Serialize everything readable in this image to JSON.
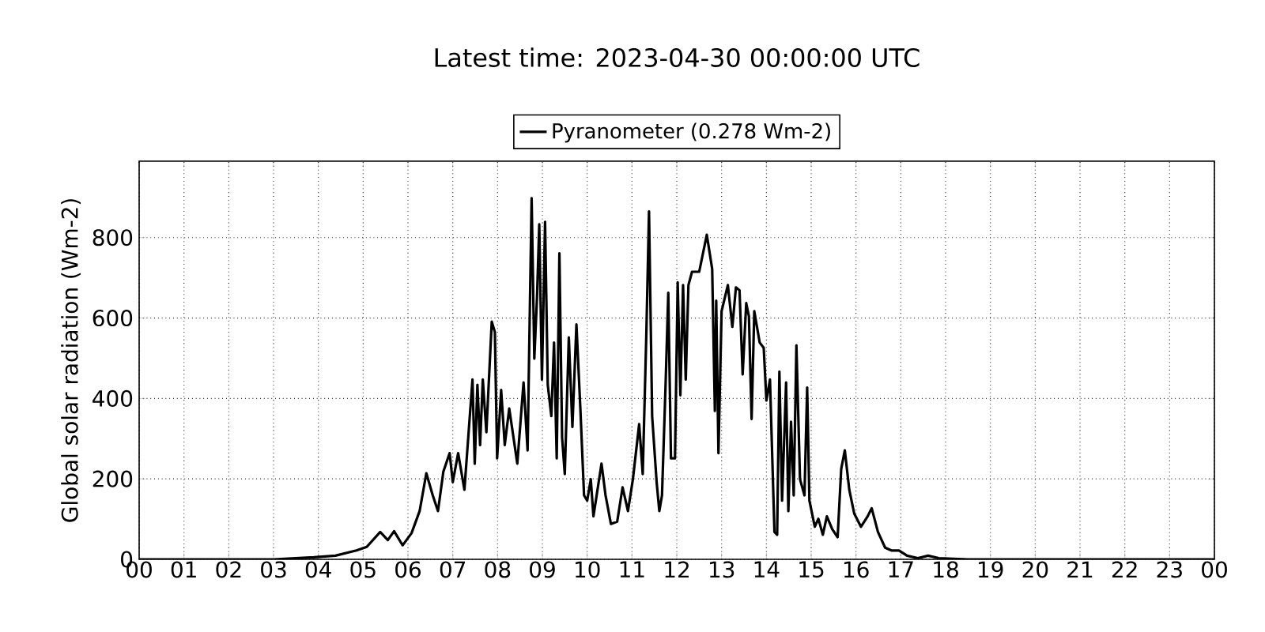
{
  "chart_data": {
    "type": "line",
    "title": "Latest time: 2023-04-30 00:00:00 UTC",
    "ylabel": "Global solar radiation (Wm-2)",
    "xlim": [
      0,
      24
    ],
    "xticks": [
      {
        "value": 0,
        "label": "00"
      },
      {
        "value": 1,
        "label": "01"
      },
      {
        "value": 2,
        "label": "02"
      },
      {
        "value": 3,
        "label": "03"
      },
      {
        "value": 4,
        "label": "04"
      },
      {
        "value": 5,
        "label": "05"
      },
      {
        "value": 6,
        "label": "06"
      },
      {
        "value": 7,
        "label": "07"
      },
      {
        "value": 8,
        "label": "08"
      },
      {
        "value": 9,
        "label": "09"
      },
      {
        "value": 10,
        "label": "10"
      },
      {
        "value": 11,
        "label": "11"
      },
      {
        "value": 12,
        "label": "12"
      },
      {
        "value": 13,
        "label": "13"
      },
      {
        "value": 14,
        "label": "14"
      },
      {
        "value": 15,
        "label": "15"
      },
      {
        "value": 16,
        "label": "16"
      },
      {
        "value": 17,
        "label": "17"
      },
      {
        "value": 18,
        "label": "18"
      },
      {
        "value": 19,
        "label": "19"
      },
      {
        "value": 20,
        "label": "20"
      },
      {
        "value": 21,
        "label": "21"
      },
      {
        "value": 22,
        "label": "22"
      },
      {
        "value": 23,
        "label": "23"
      },
      {
        "value": 24,
        "label": "00"
      }
    ],
    "ylim": [
      0,
      990
    ],
    "yticks": [
      0,
      200,
      400,
      600,
      800
    ],
    "grid": true,
    "legend": "top",
    "marker": "none",
    "line_style": "solid",
    "series": [
      {
        "name": "Pyranometer (0.278 Wm-2)",
        "color": "#000000",
        "x": [
          0,
          3.0,
          3.9,
          4.38,
          4.85,
          5.08,
          5.38,
          5.55,
          5.69,
          5.88,
          6.08,
          6.26,
          6.41,
          6.55,
          6.67,
          6.79,
          6.93,
          7.0,
          7.12,
          7.26,
          7.44,
          7.49,
          7.55,
          7.61,
          7.67,
          7.75,
          7.87,
          7.94,
          7.99,
          8.08,
          8.16,
          8.26,
          8.44,
          8.58,
          8.67,
          8.76,
          8.82,
          8.88,
          8.93,
          8.99,
          9.06,
          9.12,
          9.2,
          9.26,
          9.32,
          9.38,
          9.44,
          9.5,
          9.59,
          9.67,
          9.76,
          9.85,
          9.93,
          10.0,
          10.08,
          10.14,
          10.32,
          10.41,
          10.53,
          10.67,
          10.79,
          10.91,
          11.02,
          11.16,
          11.24,
          11.32,
          11.38,
          11.45,
          11.55,
          11.61,
          11.67,
          11.75,
          11.81,
          11.87,
          11.96,
          12.02,
          12.08,
          12.14,
          12.2,
          12.26,
          12.34,
          12.5,
          12.67,
          12.79,
          12.85,
          12.88,
          12.93,
          13.0,
          13.14,
          13.24,
          13.32,
          13.4,
          13.47,
          13.55,
          13.61,
          13.67,
          13.73,
          13.85,
          13.94,
          14.0,
          14.08,
          14.18,
          14.24,
          14.29,
          14.35,
          14.44,
          14.49,
          14.55,
          14.61,
          14.67,
          14.75,
          14.85,
          14.91,
          14.96,
          15.08,
          15.16,
          15.26,
          15.35,
          15.47,
          15.59,
          15.67,
          15.75,
          15.85,
          15.96,
          16.11,
          16.26,
          16.35,
          16.49,
          16.65,
          16.79,
          16.96,
          17.14,
          17.38,
          17.61,
          17.85,
          18.5,
          24
        ],
        "values": [
          0,
          0,
          5,
          9,
          22,
          31,
          68,
          48,
          70,
          35,
          65,
          120,
          214,
          160,
          120,
          218,
          264,
          192,
          264,
          173,
          447,
          238,
          434,
          284,
          447,
          316,
          591,
          565,
          251,
          421,
          284,
          375,
          238,
          440,
          271,
          898,
          499,
          650,
          833,
          447,
          839,
          434,
          356,
          539,
          251,
          761,
          303,
          212,
          552,
          329,
          584,
          369,
          159,
          146,
          199,
          107,
          238,
          159,
          88,
          94,
          179,
          120,
          199,
          336,
          212,
          558,
          865,
          356,
          192,
          120,
          159,
          434,
          663,
          251,
          251,
          689,
          408,
          682,
          447,
          682,
          715,
          715,
          807,
          722,
          369,
          643,
          264,
          617,
          682,
          578,
          676,
          669,
          460,
          637,
          604,
          349,
          617,
          539,
          526,
          395,
          447,
          68,
          61,
          467,
          146,
          440,
          120,
          342,
          159,
          532,
          199,
          159,
          427,
          146,
          81,
          101,
          61,
          107,
          75,
          55,
          225,
          271,
          173,
          114,
          81,
          107,
          127,
          68,
          29,
          22,
          22,
          9,
          3,
          9,
          3,
          0,
          0
        ]
      }
    ]
  }
}
